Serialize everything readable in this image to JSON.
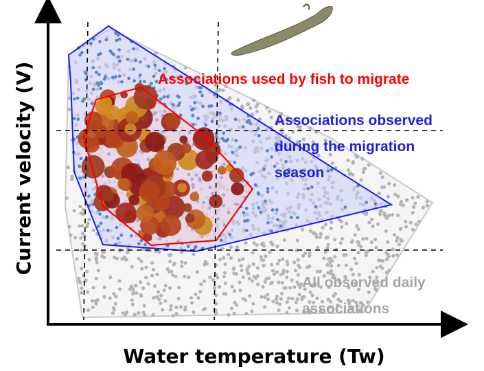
{
  "axes": {
    "x_label": "Water temperature (Tw)",
    "y_label": "Current velocity (V)"
  },
  "annotations": {
    "fish_migration": "Associations used by fish to migrate",
    "migration_season": [
      "Associations observed",
      "during the migration",
      "season"
    ],
    "all_observed": [
      "All observed daily",
      "associations"
    ]
  }
}
